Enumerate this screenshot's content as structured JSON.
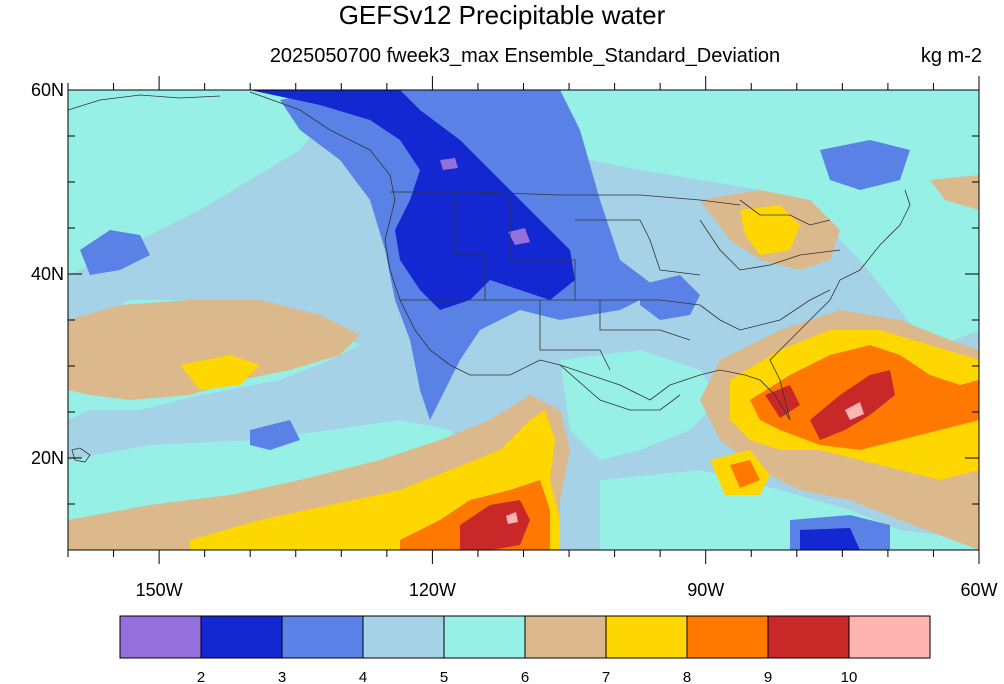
{
  "title": "GEFSv12 Precipitable water",
  "subtitle": "2025050700 fweek3_max Ensemble_Standard_Deviation",
  "units": "kg m-2",
  "axes": {
    "lat_labels": [
      "60N",
      "40N",
      "20N"
    ],
    "lon_labels": [
      "150W",
      "120W",
      "90W",
      "60W"
    ],
    "lat_values": [
      60,
      40,
      20
    ],
    "lon_values": [
      -150,
      -120,
      -90,
      -60
    ],
    "lat_range": [
      10,
      60
    ],
    "lon_range": [
      -160,
      -60
    ]
  },
  "colorbar": {
    "labels": [
      "2",
      "3",
      "4",
      "5",
      "6",
      "7",
      "8",
      "9",
      "10"
    ],
    "colors": [
      "#9370db",
      "#1428d2",
      "#5a82e6",
      "#a5d2e6",
      "#96f0e6",
      "#dcb98c",
      "#ffd700",
      "#ff7800",
      "#c82828",
      "#ffb4b4"
    ]
  },
  "colors": {
    "background_field": "#a5d2e6",
    "coast_line": "#333333"
  }
}
